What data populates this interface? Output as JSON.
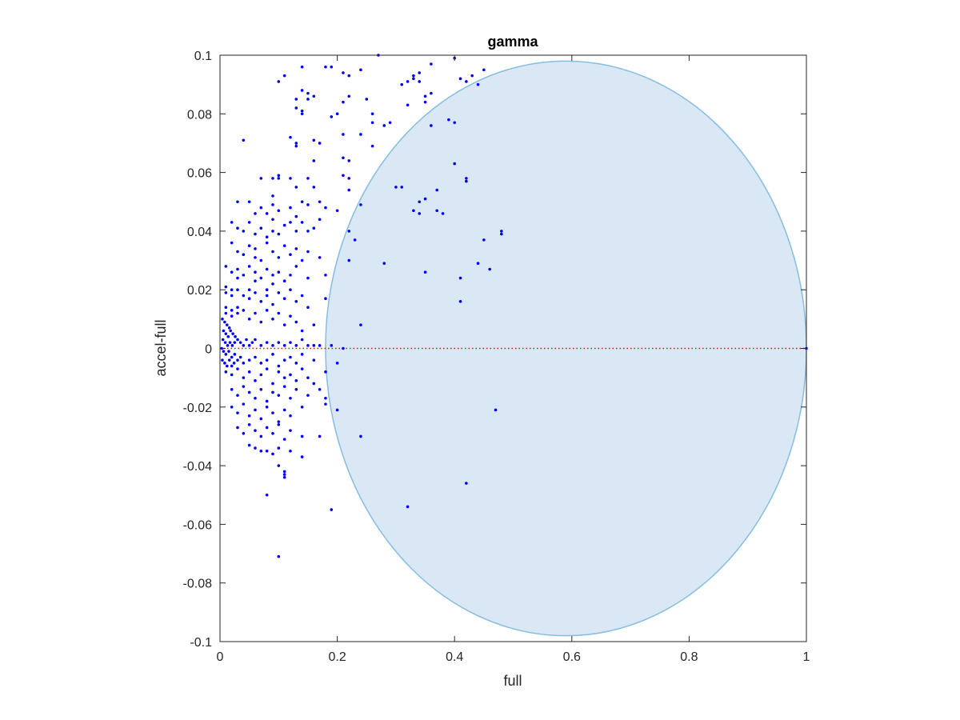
{
  "chart_data": {
    "type": "scatter",
    "title": "gamma",
    "xlabel": "full",
    "ylabel": "accel-full",
    "xlim": [
      0,
      1
    ],
    "ylim": [
      -0.1,
      0.1
    ],
    "xticks": [
      0,
      0.2,
      0.4,
      0.6,
      0.8,
      1
    ],
    "xtick_labels": [
      "0",
      "0.2",
      "0.4",
      "0.6",
      "0.8",
      "1"
    ],
    "yticks": [
      -0.1,
      -0.08,
      -0.06,
      -0.04,
      -0.02,
      0,
      0.02,
      0.04,
      0.06,
      0.08,
      0.1
    ],
    "ytick_labels": [
      "-0.1",
      "-0.08",
      "-0.06",
      "-0.04",
      "-0.02",
      "0",
      "0.02",
      "0.04",
      "0.06",
      "0.08",
      "0.1"
    ],
    "grid": false,
    "reference_line": {
      "y": 0,
      "style": "dotted",
      "color": "#ff0000"
    },
    "region": {
      "shape": "ellipse",
      "center": [
        0.59,
        0
      ],
      "half_width": 0.41,
      "half_height": 0.098,
      "clipped_to_xlim": true,
      "fill": "#d9e8f4",
      "edge": "#86bde0"
    },
    "points_color": "#0000ff",
    "points": [
      [
        0.27,
        0.1
      ],
      [
        0.4,
        0.099
      ],
      [
        0.36,
        0.097
      ],
      [
        0.45,
        0.095
      ],
      [
        0.18,
        0.096
      ],
      [
        0.19,
        0.096
      ],
      [
        0.14,
        0.096
      ],
      [
        0.1,
        0.091
      ],
      [
        0.11,
        0.093
      ],
      [
        0.21,
        0.094
      ],
      [
        0.22,
        0.093
      ],
      [
        0.24,
        0.095
      ],
      [
        0.34,
        0.094
      ],
      [
        0.33,
        0.092
      ],
      [
        0.33,
        0.093
      ],
      [
        0.34,
        0.091
      ],
      [
        0.31,
        0.09
      ],
      [
        0.32,
        0.091
      ],
      [
        0.41,
        0.092
      ],
      [
        0.42,
        0.091
      ],
      [
        0.43,
        0.093
      ],
      [
        0.44,
        0.09
      ],
      [
        0.14,
        0.088
      ],
      [
        0.15,
        0.087
      ],
      [
        0.16,
        0.086
      ],
      [
        0.13,
        0.085
      ],
      [
        0.15,
        0.085
      ],
      [
        0.13,
        0.082
      ],
      [
        0.14,
        0.081
      ],
      [
        0.14,
        0.08
      ],
      [
        0.19,
        0.079
      ],
      [
        0.2,
        0.08
      ],
      [
        0.21,
        0.084
      ],
      [
        0.22,
        0.086
      ],
      [
        0.25,
        0.085
      ],
      [
        0.26,
        0.08
      ],
      [
        0.26,
        0.077
      ],
      [
        0.28,
        0.076
      ],
      [
        0.29,
        0.077
      ],
      [
        0.32,
        0.083
      ],
      [
        0.35,
        0.084
      ],
      [
        0.36,
        0.087
      ],
      [
        0.35,
        0.086
      ],
      [
        0.36,
        0.076
      ],
      [
        0.04,
        0.071
      ],
      [
        0.12,
        0.072
      ],
      [
        0.13,
        0.069
      ],
      [
        0.13,
        0.07
      ],
      [
        0.16,
        0.071
      ],
      [
        0.17,
        0.07
      ],
      [
        0.16,
        0.064
      ],
      [
        0.21,
        0.073
      ],
      [
        0.21,
        0.065
      ],
      [
        0.22,
        0.064
      ],
      [
        0.26,
        0.069
      ],
      [
        0.24,
        0.073
      ],
      [
        0.39,
        0.078
      ],
      [
        0.4,
        0.077
      ],
      [
        0.07,
        0.058
      ],
      [
        0.09,
        0.058
      ],
      [
        0.1,
        0.058
      ],
      [
        0.1,
        0.059
      ],
      [
        0.12,
        0.058
      ],
      [
        0.15,
        0.058
      ],
      [
        0.13,
        0.055
      ],
      [
        0.16,
        0.055
      ],
      [
        0.21,
        0.059
      ],
      [
        0.22,
        0.058
      ],
      [
        0.22,
        0.054
      ],
      [
        0.3,
        0.055
      ],
      [
        0.31,
        0.055
      ],
      [
        0.34,
        0.05
      ],
      [
        0.35,
        0.051
      ],
      [
        0.37,
        0.054
      ],
      [
        0.4,
        0.063
      ],
      [
        0.42,
        0.058
      ],
      [
        0.42,
        0.057
      ],
      [
        0.03,
        0.05
      ],
      [
        0.05,
        0.05
      ],
      [
        0.06,
        0.046
      ],
      [
        0.07,
        0.048
      ],
      [
        0.08,
        0.046
      ],
      [
        0.09,
        0.049
      ],
      [
        0.09,
        0.052
      ],
      [
        0.1,
        0.047
      ],
      [
        0.12,
        0.048
      ],
      [
        0.13,
        0.045
      ],
      [
        0.14,
        0.05
      ],
      [
        0.15,
        0.049
      ],
      [
        0.17,
        0.05
      ],
      [
        0.18,
        0.048
      ],
      [
        0.2,
        0.047
      ],
      [
        0.24,
        0.049
      ],
      [
        0.33,
        0.047
      ],
      [
        0.34,
        0.046
      ],
      [
        0.37,
        0.047
      ],
      [
        0.38,
        0.046
      ],
      [
        0.02,
        0.043
      ],
      [
        0.03,
        0.041
      ],
      [
        0.04,
        0.04
      ],
      [
        0.05,
        0.043
      ],
      [
        0.06,
        0.039
      ],
      [
        0.07,
        0.041
      ],
      [
        0.08,
        0.038
      ],
      [
        0.09,
        0.044
      ],
      [
        0.09,
        0.04
      ],
      [
        0.1,
        0.039
      ],
      [
        0.11,
        0.042
      ],
      [
        0.12,
        0.043
      ],
      [
        0.13,
        0.04
      ],
      [
        0.14,
        0.043
      ],
      [
        0.15,
        0.04
      ],
      [
        0.16,
        0.041
      ],
      [
        0.17,
        0.044
      ],
      [
        0.22,
        0.04
      ],
      [
        0.23,
        0.037
      ],
      [
        0.45,
        0.037
      ],
      [
        0.48,
        0.04
      ],
      [
        0.48,
        0.039
      ],
      [
        0.02,
        0.036
      ],
      [
        0.03,
        0.033
      ],
      [
        0.04,
        0.032
      ],
      [
        0.05,
        0.035
      ],
      [
        0.06,
        0.031
      ],
      [
        0.06,
        0.034
      ],
      [
        0.07,
        0.03
      ],
      [
        0.08,
        0.036
      ],
      [
        0.09,
        0.033
      ],
      [
        0.1,
        0.031
      ],
      [
        0.11,
        0.035
      ],
      [
        0.12,
        0.032
      ],
      [
        0.13,
        0.034
      ],
      [
        0.14,
        0.03
      ],
      [
        0.15,
        0.033
      ],
      [
        0.17,
        0.031
      ],
      [
        0.22,
        0.03
      ],
      [
        0.28,
        0.029
      ],
      [
        0.35,
        0.026
      ],
      [
        0.44,
        0.029
      ],
      [
        0.46,
        0.027
      ],
      [
        0.01,
        0.028
      ],
      [
        0.02,
        0.026
      ],
      [
        0.03,
        0.027
      ],
      [
        0.03,
        0.024
      ],
      [
        0.04,
        0.025
      ],
      [
        0.05,
        0.028
      ],
      [
        0.06,
        0.023
      ],
      [
        0.06,
        0.026
      ],
      [
        0.07,
        0.024
      ],
      [
        0.08,
        0.027
      ],
      [
        0.09,
        0.025
      ],
      [
        0.09,
        0.022
      ],
      [
        0.1,
        0.026
      ],
      [
        0.11,
        0.023
      ],
      [
        0.12,
        0.025
      ],
      [
        0.13,
        0.028
      ],
      [
        0.15,
        0.024
      ],
      [
        0.18,
        0.025
      ],
      [
        0.41,
        0.024
      ],
      [
        0.41,
        0.016
      ],
      [
        0.01,
        0.021
      ],
      [
        0.01,
        0.019
      ],
      [
        0.02,
        0.02
      ],
      [
        0.02,
        0.018
      ],
      [
        0.03,
        0.02
      ],
      [
        0.04,
        0.018
      ],
      [
        0.05,
        0.02
      ],
      [
        0.05,
        0.017
      ],
      [
        0.06,
        0.019
      ],
      [
        0.07,
        0.016
      ],
      [
        0.08,
        0.02
      ],
      [
        0.08,
        0.018
      ],
      [
        0.09,
        0.015
      ],
      [
        0.1,
        0.019
      ],
      [
        0.11,
        0.017
      ],
      [
        0.12,
        0.02
      ],
      [
        0.13,
        0.016
      ],
      [
        0.14,
        0.018
      ],
      [
        0.15,
        0.014
      ],
      [
        0.18,
        0.017
      ],
      [
        0.01,
        0.014
      ],
      [
        0.01,
        0.012
      ],
      [
        0.02,
        0.013
      ],
      [
        0.02,
        0.011
      ],
      [
        0.03,
        0.014
      ],
      [
        0.03,
        0.012
      ],
      [
        0.04,
        0.013
      ],
      [
        0.05,
        0.01
      ],
      [
        0.06,
        0.012
      ],
      [
        0.07,
        0.009
      ],
      [
        0.08,
        0.013
      ],
      [
        0.09,
        0.01
      ],
      [
        0.1,
        0.012
      ],
      [
        0.11,
        0.008
      ],
      [
        0.12,
        0.011
      ],
      [
        0.13,
        0.009
      ],
      [
        0.14,
        0.006
      ],
      [
        0.16,
        0.008
      ],
      [
        0.24,
        0.008
      ],
      [
        0.004,
        0.01
      ],
      [
        0.008,
        0.009
      ],
      [
        0.012,
        0.008
      ],
      [
        0.016,
        0.007
      ],
      [
        0.006,
        0.006
      ],
      [
        0.01,
        0.005
      ],
      [
        0.014,
        0.004
      ],
      [
        0.018,
        0.006
      ],
      [
        0.022,
        0.005
      ],
      [
        0.026,
        0.004
      ],
      [
        0.005,
        0.003
      ],
      [
        0.009,
        0.002
      ],
      [
        0.013,
        0.001
      ],
      [
        0.017,
        0.002
      ],
      [
        0.021,
        0.001
      ],
      [
        0.025,
        0.002
      ],
      [
        0.03,
        0.003
      ],
      [
        0.035,
        0.002
      ],
      [
        0.04,
        0.001
      ],
      [
        0.045,
        0.003
      ],
      [
        0.05,
        0.001
      ],
      [
        0.055,
        0.002
      ],
      [
        0.06,
        0.003
      ],
      [
        0.07,
        0.001
      ],
      [
        0.08,
        0.002
      ],
      [
        0.09,
        0.001
      ],
      [
        0.1,
        0.002
      ],
      [
        0.11,
        0.001
      ],
      [
        0.12,
        0.002
      ],
      [
        0.13,
        0.001
      ],
      [
        0.14,
        0.003
      ],
      [
        0.15,
        0.001
      ],
      [
        0.16,
        0.001
      ],
      [
        0.17,
        0.001
      ],
      [
        0.19,
        0.001
      ],
      [
        0.21,
        0.0
      ],
      [
        0.003,
        0.0
      ],
      [
        0.006,
        -0.001
      ],
      [
        0.01,
        -0.002
      ],
      [
        0.015,
        -0.001
      ],
      [
        0.02,
        -0.003
      ],
      [
        0.025,
        -0.002
      ],
      [
        0.004,
        -0.004
      ],
      [
        0.008,
        -0.005
      ],
      [
        0.012,
        -0.006
      ],
      [
        0.016,
        -0.004
      ],
      [
        0.02,
        -0.006
      ],
      [
        0.024,
        -0.005
      ],
      [
        0.03,
        -0.004
      ],
      [
        0.035,
        -0.003
      ],
      [
        0.04,
        -0.005
      ],
      [
        0.05,
        -0.004
      ],
      [
        0.06,
        -0.003
      ],
      [
        0.07,
        -0.005
      ],
      [
        0.08,
        -0.004
      ],
      [
        0.09,
        -0.002
      ],
      [
        0.1,
        -0.006
      ],
      [
        0.11,
        -0.004
      ],
      [
        0.12,
        -0.003
      ],
      [
        0.13,
        -0.005
      ],
      [
        0.14,
        -0.002
      ],
      [
        0.16,
        -0.004
      ],
      [
        0.2,
        -0.005
      ],
      [
        0.01,
        -0.008
      ],
      [
        0.02,
        -0.009
      ],
      [
        0.03,
        -0.007
      ],
      [
        0.04,
        -0.01
      ],
      [
        0.05,
        -0.008
      ],
      [
        0.06,
        -0.011
      ],
      [
        0.07,
        -0.009
      ],
      [
        0.08,
        -0.007
      ],
      [
        0.09,
        -0.012
      ],
      [
        0.1,
        -0.008
      ],
      [
        0.11,
        -0.01
      ],
      [
        0.12,
        -0.009
      ],
      [
        0.13,
        -0.011
      ],
      [
        0.14,
        -0.007
      ],
      [
        0.15,
        -0.01
      ],
      [
        0.16,
        -0.012
      ],
      [
        0.18,
        -0.008
      ],
      [
        0.02,
        -0.014
      ],
      [
        0.03,
        -0.016
      ],
      [
        0.04,
        -0.013
      ],
      [
        0.05,
        -0.015
      ],
      [
        0.06,
        -0.017
      ],
      [
        0.07,
        -0.014
      ],
      [
        0.08,
        -0.018
      ],
      [
        0.09,
        -0.015
      ],
      [
        0.1,
        -0.016
      ],
      [
        0.11,
        -0.013
      ],
      [
        0.12,
        -0.017
      ],
      [
        0.13,
        -0.014
      ],
      [
        0.15,
        -0.016
      ],
      [
        0.17,
        -0.014
      ],
      [
        0.18,
        -0.017
      ],
      [
        0.18,
        -0.019
      ],
      [
        0.02,
        -0.02
      ],
      [
        0.03,
        -0.022
      ],
      [
        0.04,
        -0.019
      ],
      [
        0.05,
        -0.023
      ],
      [
        0.06,
        -0.021
      ],
      [
        0.07,
        -0.024
      ],
      [
        0.08,
        -0.02
      ],
      [
        0.09,
        -0.022
      ],
      [
        0.1,
        -0.025
      ],
      [
        0.11,
        -0.021
      ],
      [
        0.12,
        -0.023
      ],
      [
        0.14,
        -0.02
      ],
      [
        0.2,
        -0.021
      ],
      [
        0.47,
        -0.021
      ],
      [
        0.03,
        -0.027
      ],
      [
        0.04,
        -0.029
      ],
      [
        0.05,
        -0.026
      ],
      [
        0.06,
        -0.028
      ],
      [
        0.07,
        -0.03
      ],
      [
        0.08,
        -0.027
      ],
      [
        0.09,
        -0.029
      ],
      [
        0.1,
        -0.026
      ],
      [
        0.11,
        -0.031
      ],
      [
        0.12,
        -0.028
      ],
      [
        0.14,
        -0.03
      ],
      [
        0.17,
        -0.03
      ],
      [
        0.24,
        -0.03
      ],
      [
        0.05,
        -0.033
      ],
      [
        0.06,
        -0.034
      ],
      [
        0.07,
        -0.035
      ],
      [
        0.08,
        -0.035
      ],
      [
        0.09,
        -0.036
      ],
      [
        0.1,
        -0.034
      ],
      [
        0.12,
        -0.035
      ],
      [
        0.14,
        -0.037
      ],
      [
        0.1,
        -0.04
      ],
      [
        0.11,
        -0.042
      ],
      [
        0.11,
        -0.044
      ],
      [
        0.11,
        -0.043
      ],
      [
        0.42,
        -0.046
      ],
      [
        0.08,
        -0.05
      ],
      [
        0.19,
        -0.055
      ],
      [
        0.32,
        -0.054
      ],
      [
        0.1,
        -0.071
      ],
      [
        1.0,
        0.0
      ]
    ]
  }
}
